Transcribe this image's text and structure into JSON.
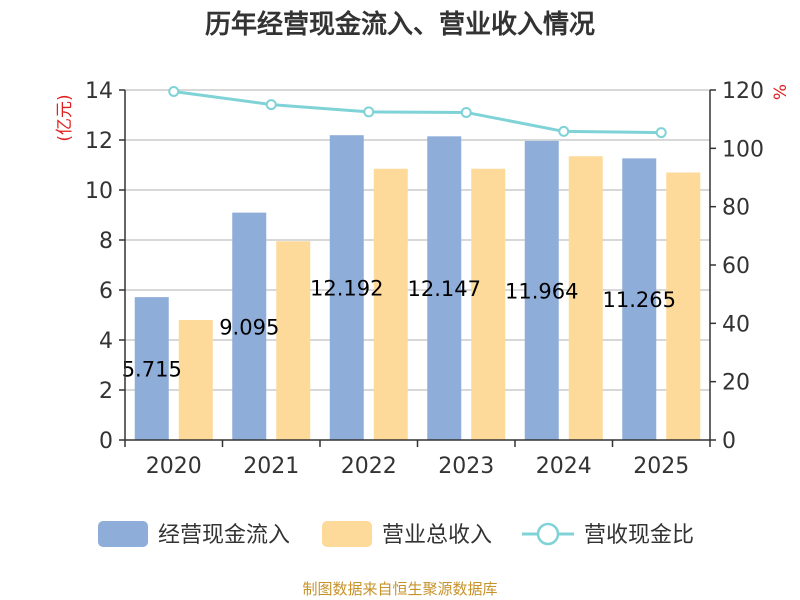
{
  "title": "历年经营现金流入、营业收入情况",
  "source": "制图数据来自恒生聚源数据库",
  "colors": {
    "inflow": "#8eadd9",
    "revenue": "#fdd99a",
    "ratio": "#7fd3d6",
    "unit": "#e02020",
    "axis": "#333333",
    "grid": "#cccccc"
  },
  "chart_data": {
    "type": "bar",
    "categories": [
      "2020",
      "2021",
      "2022",
      "2023",
      "2024",
      "2025"
    ],
    "series": [
      {
        "name": "经营现金流入",
        "type": "bar",
        "axis": "left",
        "values": [
          5.715,
          9.095,
          12.192,
          12.147,
          11.964,
          11.265
        ],
        "labels": [
          "5.715",
          "9.095",
          "12.192",
          "12.147",
          "11.964",
          "11.265"
        ]
      },
      {
        "name": "营业总收入",
        "type": "bar",
        "axis": "left",
        "values": [
          4.8,
          7.95,
          10.85,
          10.85,
          11.35,
          10.7
        ]
      },
      {
        "name": "营收现金比",
        "type": "line",
        "axis": "right",
        "values": [
          119.5,
          115,
          112.5,
          112.3,
          105.8,
          105.4
        ]
      }
    ],
    "ylabel_left": "(亿元)",
    "ylabel_right": "%",
    "ylim_left": [
      0,
      14
    ],
    "yticks_left": [
      0,
      2,
      4,
      6,
      8,
      10,
      12,
      14
    ],
    "ylim_right": [
      0,
      120
    ],
    "yticks_right": [
      0,
      20,
      40,
      60,
      80,
      100,
      120
    ],
    "grid": true,
    "legend": "bottom"
  }
}
